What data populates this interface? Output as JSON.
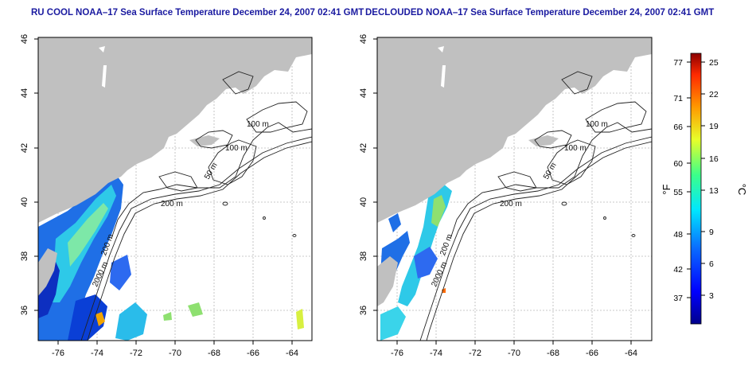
{
  "panels": [
    {
      "title": "RU COOL NOAA–17 Sea Surface Temperature December 24, 2007 02:41 GMT",
      "x_ticks": [
        "-76",
        "-74",
        "-72",
        "-70",
        "-68",
        "-66",
        "-64"
      ],
      "y_ticks": [
        "36",
        "38",
        "40",
        "42",
        "44",
        "46"
      ],
      "contours": [
        {
          "text": "100 m"
        },
        {
          "text": "100 m"
        },
        {
          "text": "50 m"
        },
        {
          "text": "200 m"
        },
        {
          "text": "200 m"
        },
        {
          "text": "2000 m"
        }
      ]
    },
    {
      "title": "DECLOUDED NOAA–17 Sea Surface Temperature December 24, 2007 02:41 GMT",
      "x_ticks": [
        "-76",
        "-74",
        "-72",
        "-70",
        "-68",
        "-66",
        "-64"
      ],
      "y_ticks": [
        "36",
        "38",
        "40",
        "42",
        "44",
        "46"
      ],
      "contours": [
        {
          "text": "100 m"
        },
        {
          "text": "100 m"
        },
        {
          "text": "50 m"
        },
        {
          "text": "200 m"
        },
        {
          "text": "200 m"
        },
        {
          "text": "2000 m"
        }
      ]
    }
  ],
  "colorbar": {
    "f_label": "°F",
    "c_label": "°C",
    "f_ticks": [
      "77",
      "71",
      "66",
      "60",
      "55",
      "48",
      "42",
      "37"
    ],
    "c_ticks": [
      "25",
      "22",
      "19",
      "16",
      "13",
      "9",
      "6",
      "3"
    ]
  },
  "colors": {
    "land": "#c0c0c0",
    "ocean": "#ffffff",
    "title": "#1a1aa0",
    "contour": "#222222",
    "grid": "#b8b8b8"
  }
}
